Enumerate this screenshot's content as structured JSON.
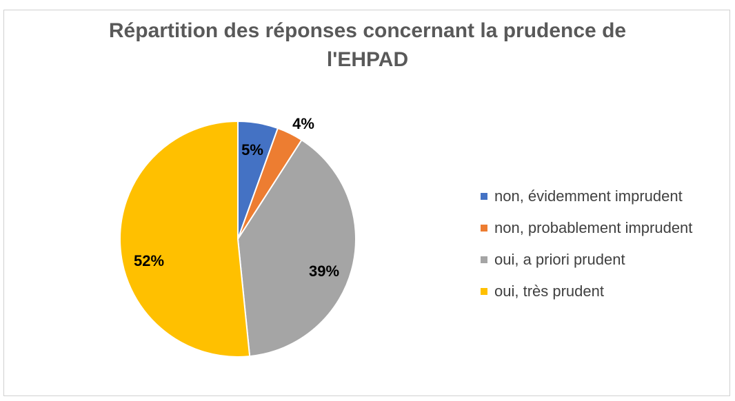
{
  "title": {
    "line1": "Répartition des réponses concernant la prudence de",
    "line2": "l'EHPAD"
  },
  "chart_data": {
    "type": "pie",
    "title": "Répartition des réponses concernant la prudence de l'EHPAD",
    "categories": [
      "non, évidemment imprudent",
      "non, probablement imprudent",
      "oui, a priori prudent",
      "oui, très prudent"
    ],
    "values": [
      5.5,
      3.6,
      39.3,
      51.6
    ],
    "labels": [
      "5%",
      "4%",
      "39%",
      "52%"
    ],
    "colors": [
      "#4472C4",
      "#ED7D31",
      "#A5A5A5",
      "#FFC000"
    ],
    "legend_position": "right"
  }
}
